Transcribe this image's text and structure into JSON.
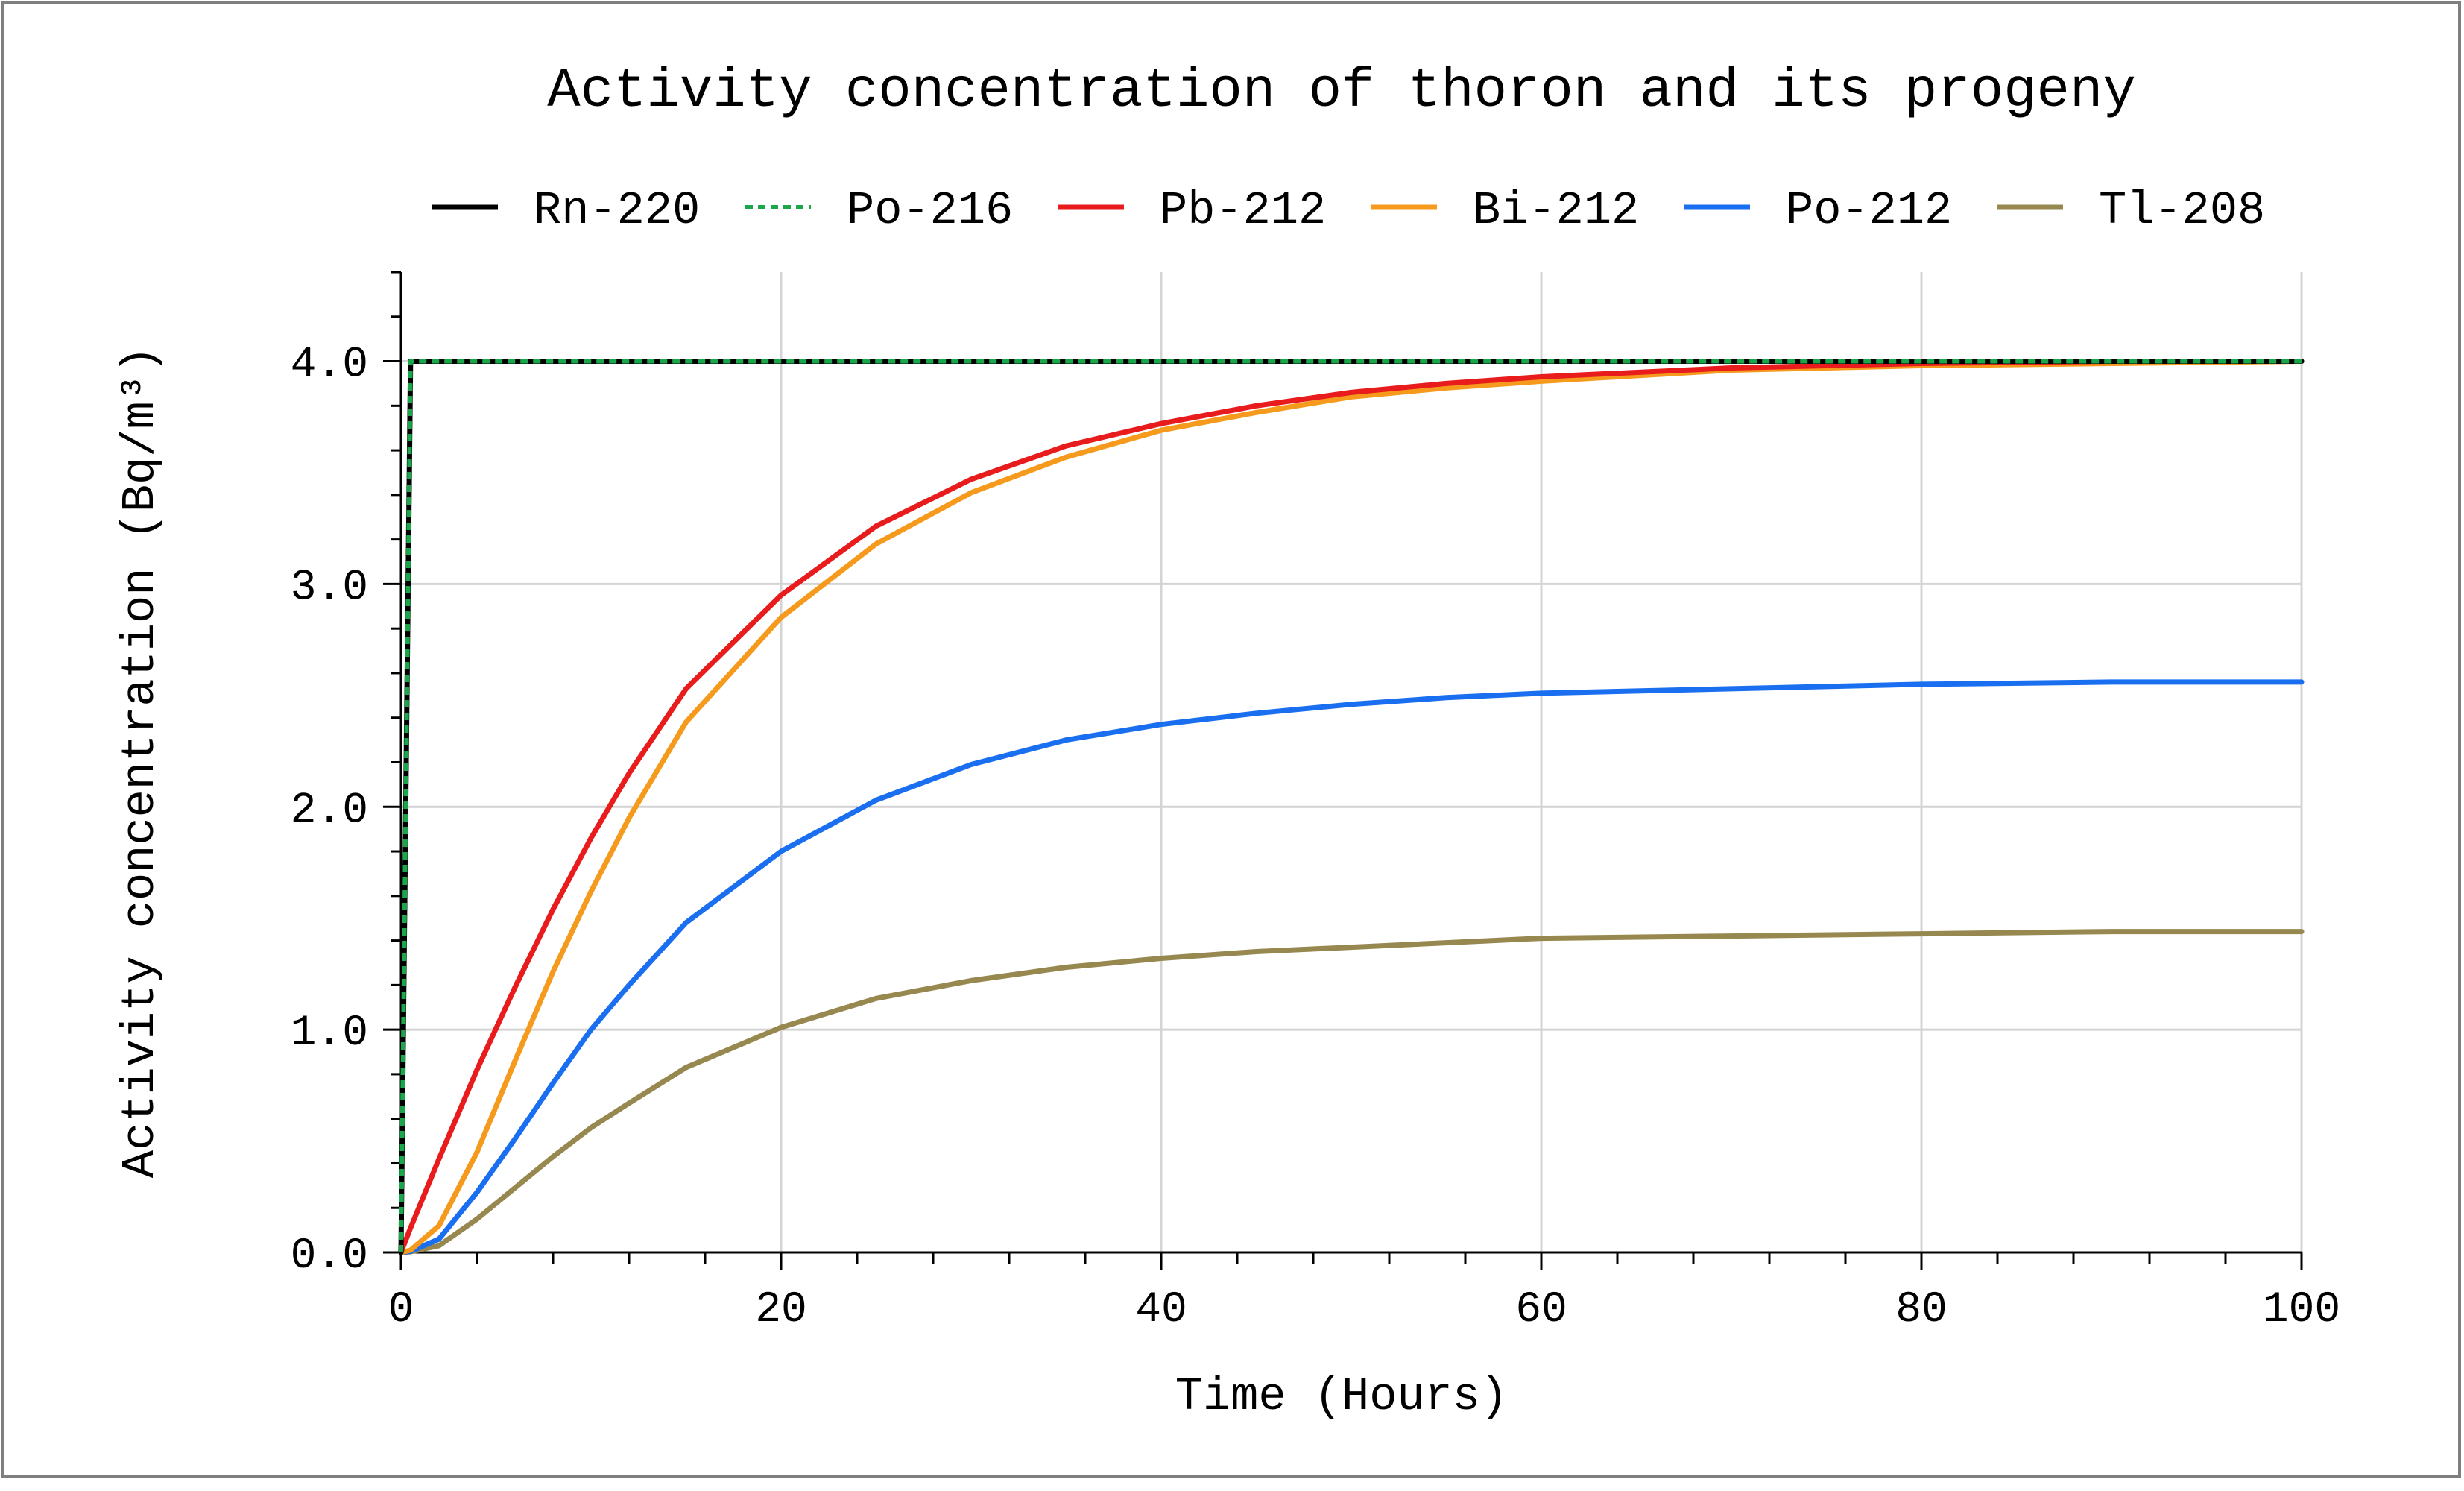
{
  "chart_data": {
    "type": "line",
    "title": "Activity concentration of thoron and its progeny",
    "xlabel": "Time (Hours)",
    "ylabel": "Activity concentration (Bq/m³)",
    "xlim": [
      0,
      100
    ],
    "ylim": [
      0,
      4.4
    ],
    "xticks": [
      0,
      20,
      40,
      60,
      80,
      100
    ],
    "xtick_labels": [
      "0",
      "20",
      "40",
      "60",
      "80",
      "100"
    ],
    "yticks": [
      0,
      1,
      2,
      3,
      4
    ],
    "ytick_labels": [
      "0.0",
      "1.0",
      "2.0",
      "3.0",
      "4.0"
    ],
    "grid": true,
    "legend_position": "top",
    "x": [
      0,
      0.5,
      2,
      4,
      6,
      8,
      10,
      12,
      15,
      20,
      25,
      30,
      35,
      40,
      45,
      50,
      55,
      60,
      70,
      80,
      90,
      100
    ],
    "series": [
      {
        "name": "Rn-220",
        "color": "#000000",
        "style": "solid",
        "values": [
          0,
          4.0,
          4.0,
          4.0,
          4.0,
          4.0,
          4.0,
          4.0,
          4.0,
          4.0,
          4.0,
          4.0,
          4.0,
          4.0,
          4.0,
          4.0,
          4.0,
          4.0,
          4.0,
          4.0,
          4.0,
          4.0
        ]
      },
      {
        "name": "Po-216",
        "color": "#1aa64a",
        "style": "dotted",
        "values": [
          0,
          4.0,
          4.0,
          4.0,
          4.0,
          4.0,
          4.0,
          4.0,
          4.0,
          4.0,
          4.0,
          4.0,
          4.0,
          4.0,
          4.0,
          4.0,
          4.0,
          4.0,
          4.0,
          4.0,
          4.0,
          4.0
        ]
      },
      {
        "name": "Pb-212",
        "color": "#e81c1c",
        "style": "solid",
        "values": [
          0,
          0.11,
          0.42,
          0.82,
          1.19,
          1.54,
          1.86,
          2.15,
          2.53,
          2.95,
          3.26,
          3.47,
          3.62,
          3.72,
          3.8,
          3.86,
          3.9,
          3.93,
          3.97,
          3.99,
          4.0,
          4.0
        ]
      },
      {
        "name": "Bi-212",
        "color": "#f59a1c",
        "style": "solid",
        "values": [
          0,
          0.01,
          0.12,
          0.45,
          0.86,
          1.26,
          1.62,
          1.95,
          2.38,
          2.85,
          3.18,
          3.41,
          3.57,
          3.69,
          3.77,
          3.84,
          3.88,
          3.91,
          3.96,
          3.98,
          3.99,
          4.0
        ]
      },
      {
        "name": "Po-212",
        "color": "#1a6ef0",
        "style": "solid",
        "values": [
          0,
          0.005,
          0.06,
          0.27,
          0.51,
          0.76,
          1.0,
          1.2,
          1.48,
          1.8,
          2.03,
          2.19,
          2.3,
          2.37,
          2.42,
          2.46,
          2.49,
          2.51,
          2.53,
          2.55,
          2.56,
          2.56
        ]
      },
      {
        "name": "Tl-208",
        "color": "#978850",
        "style": "solid",
        "values": [
          0,
          0.003,
          0.03,
          0.15,
          0.29,
          0.43,
          0.56,
          0.67,
          0.83,
          1.01,
          1.14,
          1.22,
          1.28,
          1.32,
          1.35,
          1.37,
          1.39,
          1.41,
          1.42,
          1.43,
          1.44,
          1.44
        ]
      }
    ]
  }
}
